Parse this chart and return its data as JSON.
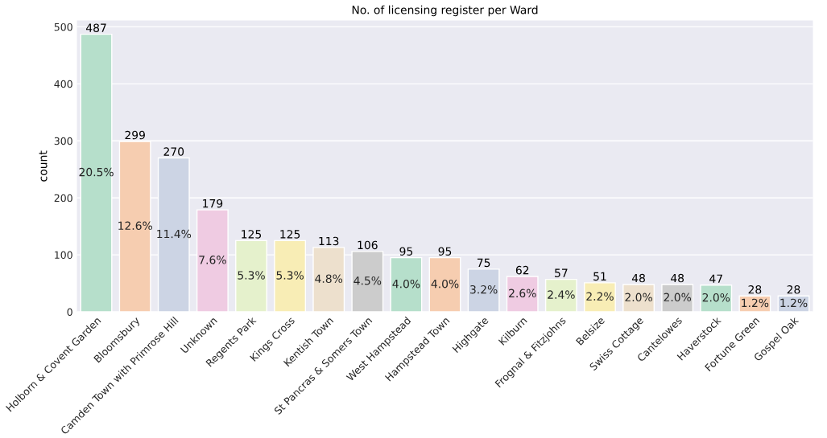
{
  "chart_data": {
    "type": "bar",
    "title": "No. of licensing register per Ward",
    "ylabel": "count",
    "categories": [
      "Holborn & Covent Garden",
      "Bloomsbury",
      "Camden Town with Primrose Hill",
      "Unknown",
      "Regents Park",
      "Kings Cross",
      "Kentish Town",
      "St Pancras & Somers Town",
      "West Hampstead",
      "Hampstead Town",
      "Highgate",
      "Kilburn",
      "Frognal & Fitzjohns",
      "Belsize",
      "Swiss Cottage",
      "Cantelowes",
      "Haverstock",
      "Fortune Green",
      "Gospel Oak"
    ],
    "values": [
      487,
      299,
      270,
      179,
      125,
      125,
      113,
      106,
      95,
      95,
      75,
      62,
      57,
      51,
      48,
      48,
      47,
      28,
      28
    ],
    "colors": [
      "#b6dfcb",
      "#f6cdb0",
      "#ccd4e4",
      "#efcbe2",
      "#e5f1cc",
      "#f8edb5",
      "#ede0cd",
      "#cccccc",
      "#b6dfcb",
      "#f6cdb0",
      "#ccd4e4",
      "#efcbe2",
      "#e5f1cc",
      "#f8edb5",
      "#ede0cd",
      "#cccccc",
      "#b6dfcb",
      "#f6cdb0",
      "#ccd4e4"
    ],
    "ylim": [
      0,
      511
    ],
    "yticks": [
      0,
      100,
      200,
      300,
      400,
      500
    ],
    "grid": "y",
    "data_labels": true,
    "annotations": [
      "20.5%",
      "12.6%",
      "11.4%",
      "7.6%",
      "5.3%",
      "5.3%",
      "4.8%",
      "4.5%",
      "4.0%",
      "4.0%",
      "3.2%",
      "2.6%",
      "2.4%",
      "2.2%",
      "2.0%",
      "2.0%",
      "2.0%",
      "1.2%",
      "1.2%"
    ]
  }
}
